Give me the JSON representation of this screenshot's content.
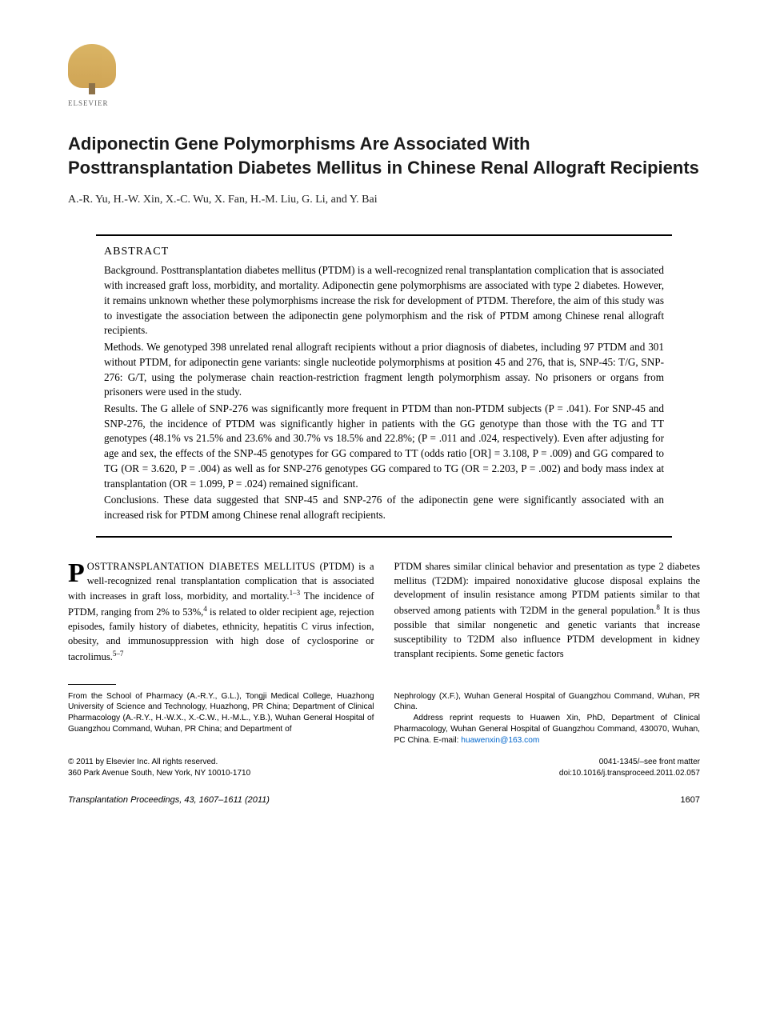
{
  "publisher": {
    "name": "ELSEVIER"
  },
  "title": "Adiponectin Gene Polymorphisms Are Associated With Posttransplantation Diabetes Mellitus in Chinese Renal Allograft Recipients",
  "authors": "A.-R. Yu, H.-W. Xin, X.-C. Wu, X. Fan, H.-M. Liu, G. Li, and Y. Bai",
  "abstract": {
    "heading": "ABSTRACT",
    "background_label": "Background.",
    "background": "Posttransplantation diabetes mellitus (PTDM) is a well-recognized renal transplantation complication that is associated with increased graft loss, morbidity, and mortality. Adiponectin gene polymorphisms are associated with type 2 diabetes. However, it remains unknown whether these polymorphisms increase the risk for development of PTDM. Therefore, the aim of this study was to investigate the association between the adiponectin gene polymorphism and the risk of PTDM among Chinese renal allograft recipients.",
    "methods_label": "Methods.",
    "methods": "We genotyped 398 unrelated renal allograft recipients without a prior diagnosis of diabetes, including 97 PTDM and 301 without PTDM, for adiponectin gene variants: single nucleotide polymorphisms at position 45 and 276, that is, SNP-45: T/G, SNP-276: G/T, using the polymerase chain reaction-restriction fragment length polymorphism assay. No prisoners or organs from prisoners were used in the study.",
    "results_label": "Results.",
    "results": "The G allele of SNP-276 was significantly more frequent in PTDM than non-PTDM subjects (P = .041). For SNP-45 and SNP-276, the incidence of PTDM was significantly higher in patients with the GG genotype than those with the TG and TT genotypes (48.1% vs 21.5% and 23.6% and 30.7% vs 18.5% and 22.8%; (P = .011 and .024, respectively). Even after adjusting for age and sex, the effects of the SNP-45 genotypes for GG compared to TT (odds ratio [OR] = 3.108, P = .009) and GG compared to TG (OR = 3.620, P = .004) as well as for SNP-276 genotypes GG compared to TG (OR = 2.203, P = .002) and body mass index at transplantation (OR = 1.099, P = .024) remained significant.",
    "conclusions_label": "Conclusions.",
    "conclusions": "These data suggested that SNP-45 and SNP-276 of the adiponectin gene were significantly associated with an increased risk for PTDM among Chinese renal allograft recipients."
  },
  "body": {
    "col1_dropcap": "P",
    "col1_lead": "OSTTRANSPLANTATION DIABETES MELLITUS",
    "col1_text": "(PTDM) is a well-recognized renal transplantation complication that is associated with increases in graft loss, morbidity, and mortality.",
    "col1_ref1": "1–3",
    "col1_text2": " The incidence of PTDM, ranging from 2% to 53%,",
    "col1_ref2": "4",
    "col1_text3": " is related to older recipient age, rejection episodes, family history of diabetes, ethnicity, hepatitis C virus infection, obesity, and immunosuppression with high dose of cyclosporine or tacrolimus.",
    "col1_ref3": "5–7",
    "col2_text": "PTDM shares similar clinical behavior and presentation as type 2 diabetes mellitus (T2DM): impaired nonoxidative glucose disposal explains the development of insulin resistance among PTDM patients similar to that observed among patients with T2DM in the general population.",
    "col2_ref1": "8",
    "col2_text2": " It is thus possible that similar nongenetic and genetic variants that increase susceptibility to T2DM also influence PTDM development in kidney transplant recipients. Some genetic factors"
  },
  "affiliations": {
    "left": "From the School of Pharmacy (A.-R.Y., G.L.), Tongji Medical College, Huazhong University of Science and Technology, Huazhong, PR China; Department of Clinical Pharmacology (A.-R.Y., H.-W.X., X.-C.W., H.-M.L., Y.B.), Wuhan General Hospital of Guangzhou Command, Wuhan, PR China; and Department of",
    "right_text1": "Nephrology (X.F.), Wuhan General Hospital of Guangzhou Command, Wuhan, PR China.",
    "right_text2": "Address reprint requests to Huawen Xin, PhD, Department of Clinical Pharmacology, Wuhan General Hospital of Guangzhou Command, 430070, Wuhan, PC China. E-mail: ",
    "email": "huawenxin@163.com"
  },
  "footer": {
    "copyright": "© 2011 by Elsevier Inc. All rights reserved.",
    "address": "360 Park Avenue South, New York, NY 10010-1710",
    "issn": "0041-1345/–see front matter",
    "doi": "doi:10.1016/j.transproceed.2011.02.057"
  },
  "journal": {
    "citation": "Transplantation Proceedings, 43, 1607–1611 (2011)",
    "page": "1607"
  },
  "colors": {
    "text": "#1a1a1a",
    "link": "#0066cc",
    "logo_gold": "#c89538"
  }
}
